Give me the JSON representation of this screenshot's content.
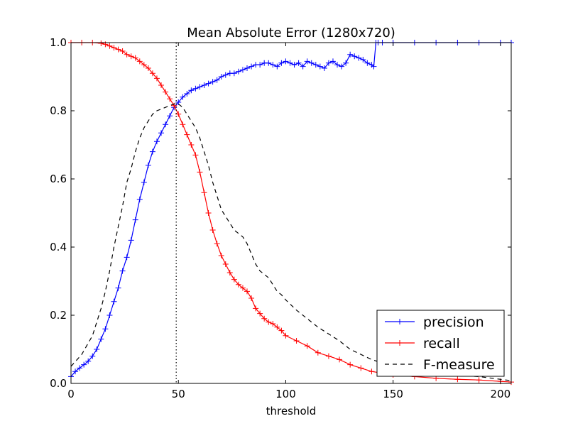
{
  "chart_data": {
    "type": "line",
    "title": "Mean Absolute Error (1280x720)",
    "xlabel": "threshold",
    "ylabel": "",
    "xlim": [
      0,
      205
    ],
    "ylim": [
      0.0,
      1.0
    ],
    "xticks": [
      0,
      50,
      100,
      150,
      200
    ],
    "xtick_labels": [
      "0",
      "50",
      "100",
      "150",
      "200"
    ],
    "yticks": [
      0.0,
      0.2,
      0.4,
      0.6,
      0.8,
      1.0
    ],
    "ytick_labels": [
      "0.0",
      "0.2",
      "0.4",
      "0.6",
      "0.8",
      "1.0"
    ],
    "grid": false,
    "legend_position": "lower-right",
    "vertical_line": {
      "x": 49,
      "style": "dotted",
      "color": "#000000"
    },
    "series": [
      {
        "name": "precision",
        "color": "#0000ff",
        "linestyle": "solid",
        "marker": "+",
        "x": [
          0,
          2,
          4,
          6,
          8,
          10,
          12,
          14,
          16,
          18,
          20,
          22,
          24,
          26,
          28,
          30,
          32,
          34,
          36,
          38,
          40,
          42,
          44,
          46,
          48,
          50,
          52,
          54,
          56,
          58,
          60,
          62,
          64,
          66,
          68,
          70,
          72,
          74,
          76,
          78,
          80,
          82,
          84,
          86,
          88,
          90,
          92,
          94,
          96,
          98,
          100,
          102,
          104,
          106,
          108,
          110,
          112,
          114,
          116,
          118,
          120,
          122,
          124,
          126,
          128,
          130,
          132,
          134,
          136,
          138,
          140,
          141,
          142,
          143,
          145,
          150,
          160,
          170,
          180,
          190,
          200,
          205
        ],
        "y": [
          0.02,
          0.035,
          0.045,
          0.055,
          0.065,
          0.08,
          0.1,
          0.13,
          0.16,
          0.2,
          0.24,
          0.28,
          0.33,
          0.37,
          0.42,
          0.48,
          0.54,
          0.59,
          0.64,
          0.68,
          0.71,
          0.735,
          0.76,
          0.785,
          0.81,
          0.825,
          0.84,
          0.85,
          0.86,
          0.865,
          0.87,
          0.875,
          0.88,
          0.885,
          0.89,
          0.9,
          0.905,
          0.91,
          0.91,
          0.915,
          0.92,
          0.925,
          0.93,
          0.935,
          0.935,
          0.94,
          0.94,
          0.935,
          0.93,
          0.94,
          0.945,
          0.94,
          0.935,
          0.94,
          0.93,
          0.945,
          0.94,
          0.935,
          0.93,
          0.925,
          0.94,
          0.945,
          0.935,
          0.93,
          0.94,
          0.965,
          0.96,
          0.955,
          0.95,
          0.94,
          0.935,
          0.93,
          1.0,
          1.0,
          1.0,
          1.0,
          1.0,
          1.0,
          1.0,
          1.0,
          1.0,
          1.0
        ]
      },
      {
        "name": "recall",
        "color": "#ff0000",
        "linestyle": "solid",
        "marker": "+",
        "x": [
          0,
          5,
          10,
          14,
          16,
          18,
          20,
          22,
          24,
          26,
          28,
          30,
          32,
          34,
          36,
          38,
          40,
          42,
          44,
          46,
          48,
          50,
          52,
          54,
          56,
          58,
          60,
          62,
          64,
          66,
          68,
          70,
          72,
          74,
          76,
          78,
          80,
          82,
          84,
          86,
          88,
          90,
          92,
          94,
          96,
          98,
          100,
          105,
          110,
          115,
          120,
          125,
          130,
          135,
          140,
          150,
          160,
          170,
          180,
          190,
          200,
          205
        ],
        "y": [
          1.0,
          1.0,
          1.0,
          0.998,
          0.995,
          0.99,
          0.985,
          0.98,
          0.975,
          0.965,
          0.96,
          0.955,
          0.945,
          0.935,
          0.925,
          0.91,
          0.895,
          0.875,
          0.855,
          0.835,
          0.815,
          0.79,
          0.76,
          0.73,
          0.7,
          0.67,
          0.62,
          0.56,
          0.5,
          0.45,
          0.41,
          0.375,
          0.35,
          0.325,
          0.305,
          0.29,
          0.28,
          0.27,
          0.25,
          0.22,
          0.205,
          0.19,
          0.18,
          0.175,
          0.165,
          0.155,
          0.14,
          0.125,
          0.11,
          0.09,
          0.08,
          0.07,
          0.055,
          0.045,
          0.035,
          0.025,
          0.02,
          0.015,
          0.012,
          0.01,
          0.006,
          0.004
        ]
      },
      {
        "name": "F-measure",
        "color": "#000000",
        "linestyle": "dashed",
        "marker": "",
        "x": [
          0,
          5,
          10,
          14,
          16,
          18,
          20,
          22,
          24,
          26,
          28,
          30,
          32,
          34,
          36,
          38,
          40,
          42,
          44,
          46,
          48,
          50,
          52,
          54,
          56,
          58,
          60,
          62,
          64,
          66,
          68,
          70,
          72,
          74,
          76,
          78,
          80,
          82,
          84,
          86,
          88,
          90,
          92,
          94,
          96,
          98,
          100,
          105,
          110,
          115,
          120,
          125,
          130,
          135,
          140,
          150,
          160,
          170,
          180,
          190,
          200,
          205
        ],
        "y": [
          0.05,
          0.085,
          0.14,
          0.22,
          0.27,
          0.33,
          0.4,
          0.46,
          0.52,
          0.59,
          0.63,
          0.68,
          0.72,
          0.75,
          0.77,
          0.79,
          0.8,
          0.805,
          0.81,
          0.815,
          0.82,
          0.82,
          0.81,
          0.79,
          0.77,
          0.75,
          0.72,
          0.68,
          0.64,
          0.59,
          0.55,
          0.51,
          0.49,
          0.47,
          0.45,
          0.44,
          0.43,
          0.41,
          0.38,
          0.35,
          0.33,
          0.32,
          0.31,
          0.29,
          0.27,
          0.26,
          0.245,
          0.215,
          0.19,
          0.165,
          0.145,
          0.125,
          0.1,
          0.085,
          0.07,
          0.05,
          0.038,
          0.03,
          0.024,
          0.02,
          0.012,
          0.008
        ]
      }
    ]
  }
}
